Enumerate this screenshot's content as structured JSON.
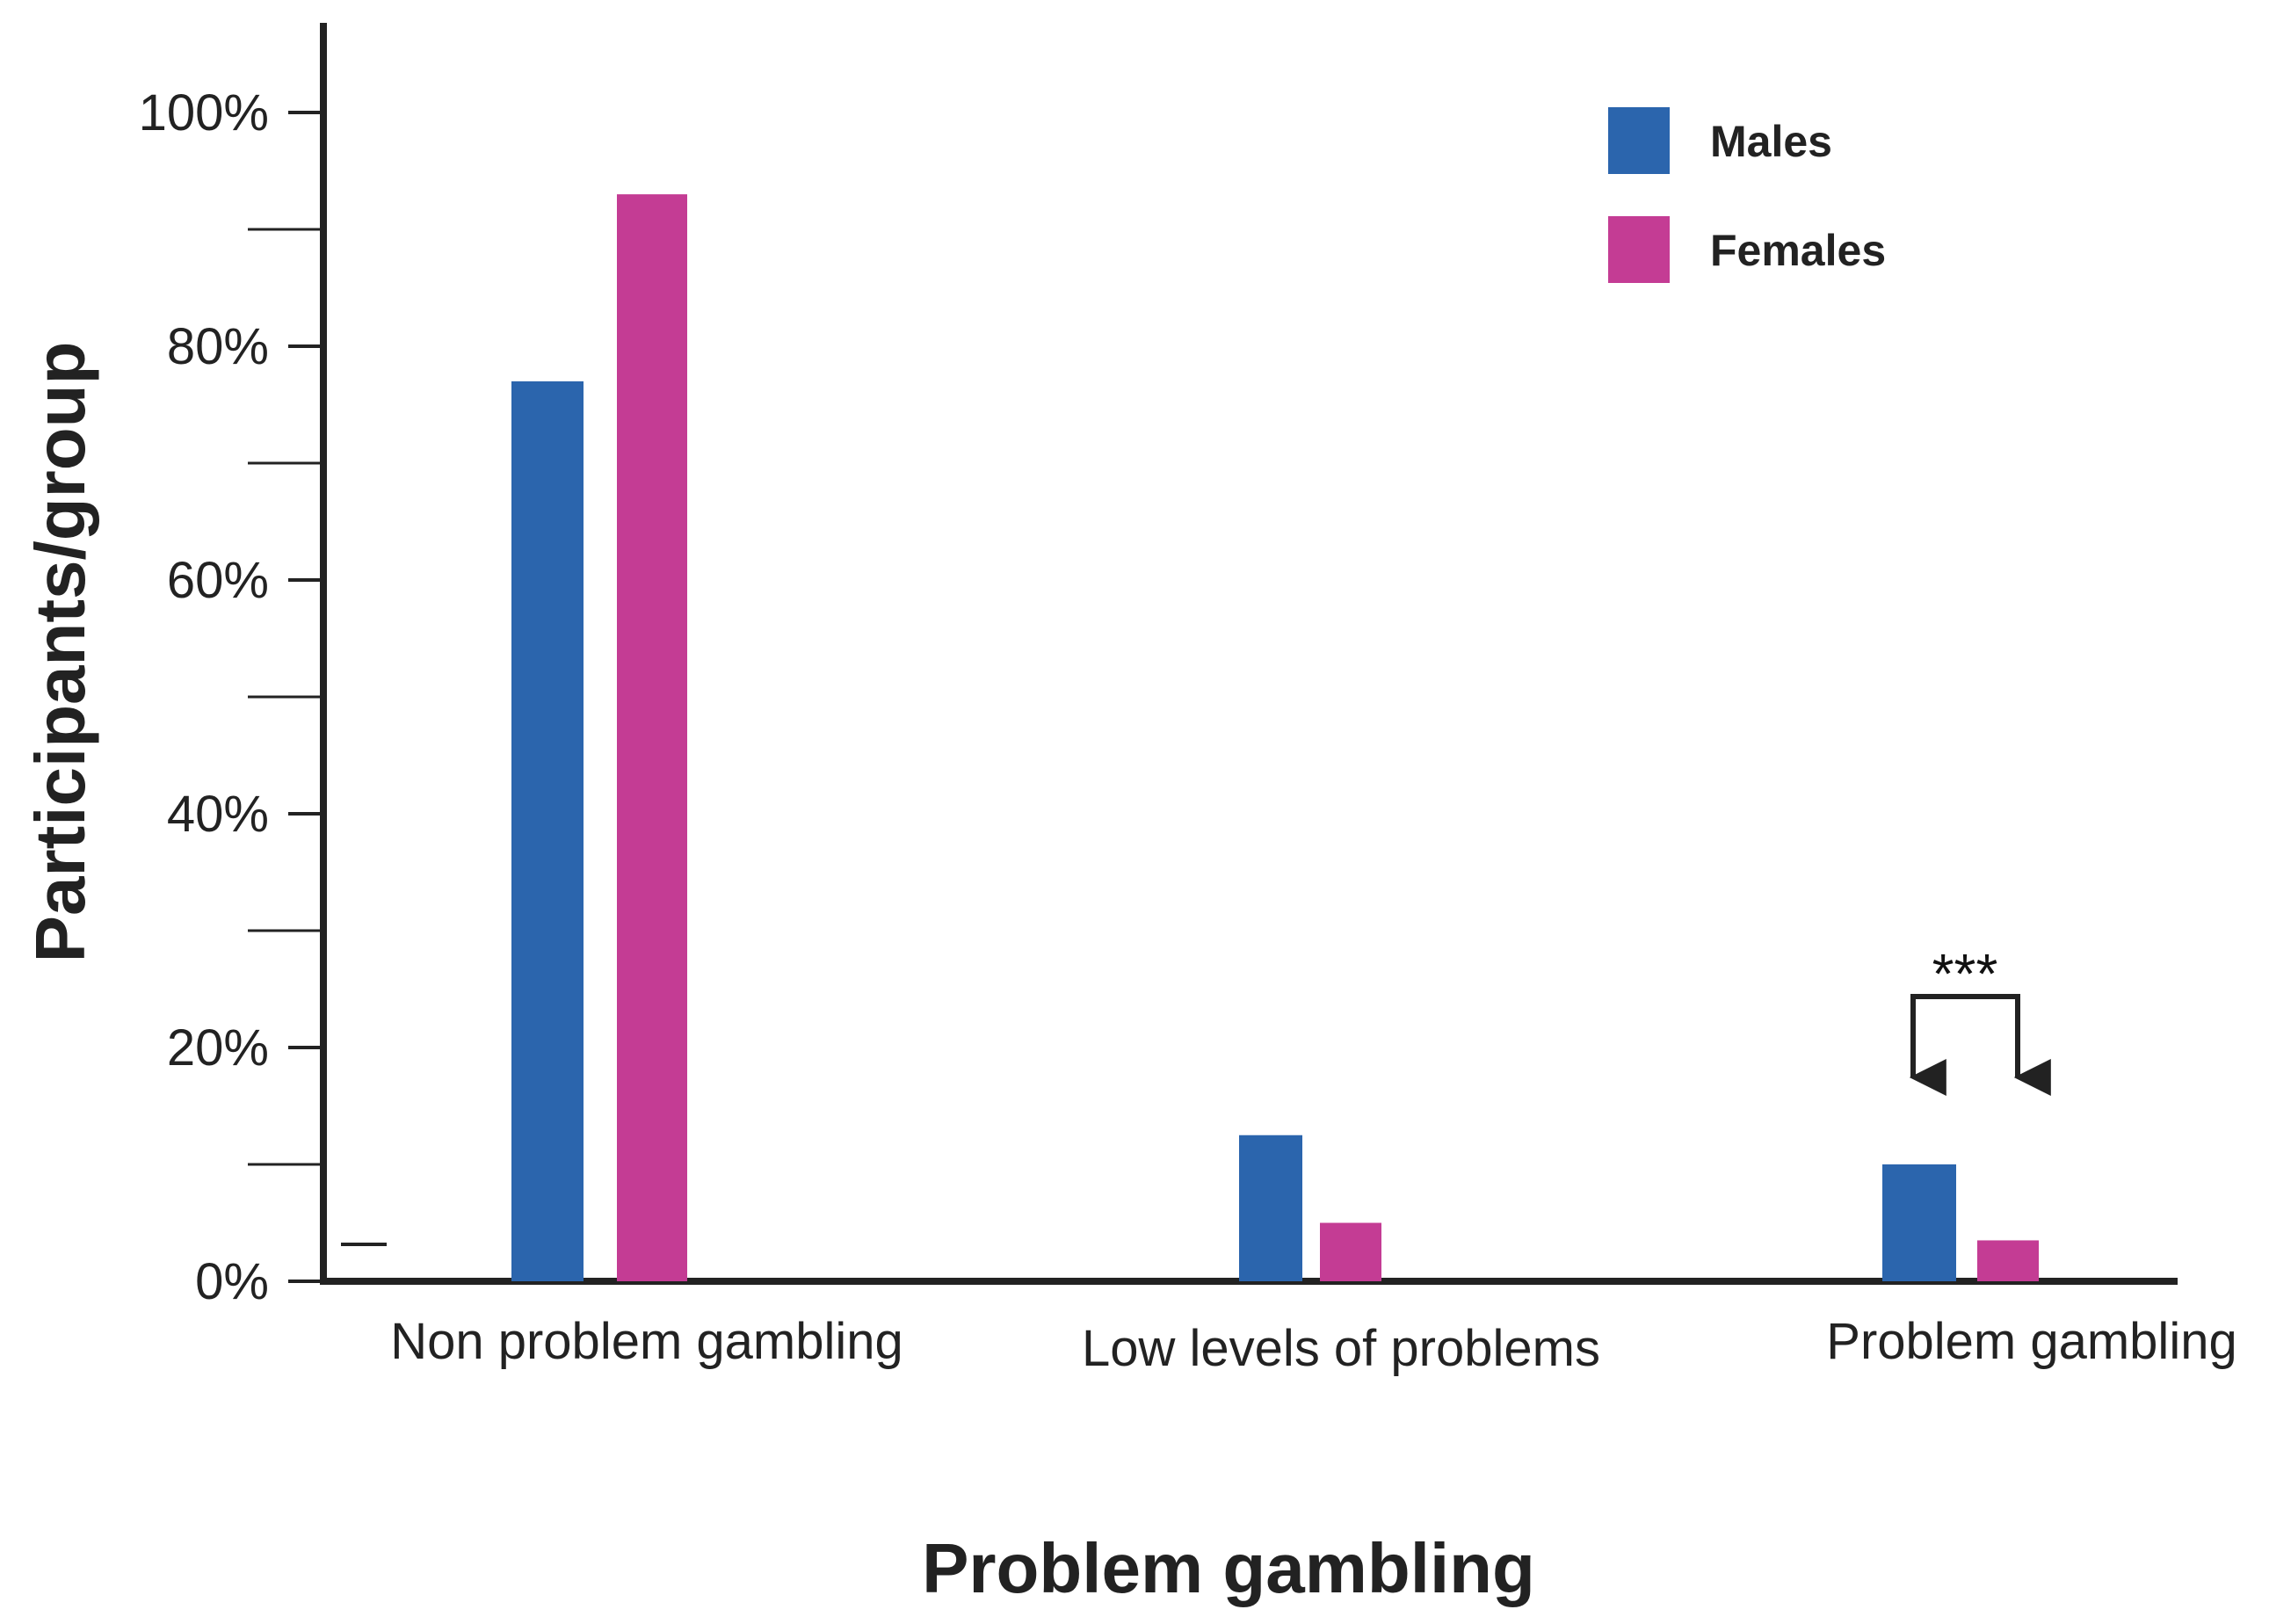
{
  "chart_data": {
    "type": "bar",
    "categories": [
      "Non problem gambling",
      "Low levels of problems",
      "Problem gambling"
    ],
    "series": [
      {
        "name": "Males",
        "values": [
          77,
          12.5,
          10
        ],
        "color": "#2B65AD"
      },
      {
        "name": "Females",
        "values": [
          93,
          5,
          3.5
        ],
        "color": "#C43C94"
      }
    ],
    "xlabel": "Problem gambling",
    "ylabel": "Participants/group",
    "ylim": [
      0,
      100
    ],
    "yticks": [
      0,
      20,
      40,
      60,
      80,
      100
    ],
    "ytick_labels": [
      "0%",
      "20%",
      "40%",
      "60%",
      "80%",
      "100%"
    ],
    "minor_yticks": [
      10,
      30,
      50,
      70,
      90
    ],
    "legend_position": "top-right",
    "grid": false,
    "annotations": [
      {
        "text": "***",
        "category": "Problem gambling",
        "type": "significance-bracket"
      }
    ]
  }
}
